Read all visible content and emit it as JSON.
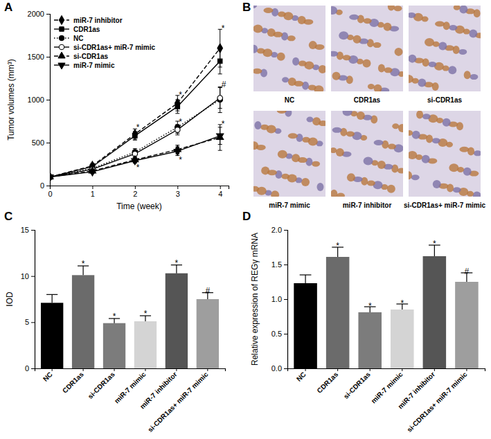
{
  "chart_data": [
    {
      "panel": "A",
      "type": "line",
      "x": [
        0,
        1,
        2,
        3,
        4
      ],
      "xlim": [
        0,
        4.2
      ],
      "xticks": [
        0,
        1,
        2,
        3,
        4
      ],
      "ylim": [
        0,
        2000
      ],
      "yticks": [
        0,
        500,
        1000,
        1500,
        2000
      ],
      "x_label": "Time (week)",
      "y_label": "Tumor volumes (mm³)",
      "legend": "upper left",
      "series": [
        {
          "name": "miR-7 inhibitor",
          "color": "#000000",
          "marker": "diamond",
          "line_style": "dashed",
          "values": [
            100,
            230,
            600,
            960,
            1600
          ],
          "errors": [
            10,
            30,
            60,
            90,
            220
          ]
        },
        {
          "name": "CDR1as",
          "color": "#000000",
          "marker": "square",
          "line_style": "solid",
          "values": [
            100,
            220,
            580,
            920,
            1450
          ],
          "errors": [
            10,
            25,
            50,
            80,
            150
          ]
        },
        {
          "name": "NC",
          "color": "#000000",
          "marker": "circle",
          "line_style": "dotted",
          "values": [
            100,
            200,
            390,
            680,
            1000
          ],
          "errors": [
            10,
            20,
            40,
            70,
            150
          ]
        },
        {
          "name": "si-CDR1as+ miR-7 mimic",
          "color": "#000000",
          "marker": "circle-open",
          "line_style": "solid",
          "values": [
            100,
            190,
            370,
            650,
            1020
          ],
          "errors": [
            10,
            20,
            40,
            60,
            120
          ]
        },
        {
          "name": "si-CDR1as",
          "color": "#000000",
          "marker": "triangle",
          "line_style": "dashed",
          "values": [
            100,
            170,
            300,
            420,
            560
          ],
          "errors": [
            10,
            20,
            30,
            50,
            150
          ]
        },
        {
          "name": "miR-7 mimic",
          "color": "#000000",
          "marker": "triangle-down",
          "line_style": "solid",
          "values": [
            100,
            160,
            290,
            400,
            580
          ],
          "errors": [
            10,
            20,
            30,
            50,
            100
          ]
        }
      ],
      "annotations": [
        {
          "x": 2,
          "y": 680,
          "text": "*"
        },
        {
          "x": 2,
          "y": 210,
          "text": "*"
        },
        {
          "x": 3,
          "y": 1060,
          "text": "*"
        },
        {
          "x": 3,
          "y": 740,
          "text": "*"
        },
        {
          "x": 3,
          "y": 300,
          "text": "*"
        },
        {
          "x": 4,
          "y": 1830,
          "text": "*"
        },
        {
          "x": 4,
          "y": 1180,
          "text": "#"
        },
        {
          "x": 4,
          "y": 720,
          "text": "*"
        }
      ]
    },
    {
      "panel": "B",
      "type": "image",
      "labels": [
        "NC",
        "CDR1as",
        "si-CDR1as",
        "miR-7 mimic",
        "miR-7 inhibitor",
        "si-CDR1as+ miR-7 mimic"
      ]
    },
    {
      "panel": "C",
      "type": "bar",
      "y_label": "IOD",
      "categories": [
        "NC",
        "CDR1as",
        "si-CDR1as",
        "miR-7 mimic",
        "miR-7 inhibitor",
        "si-CDR1as+ miR-7 mimic"
      ],
      "values": [
        7.1,
        10.1,
        4.9,
        5.1,
        10.3,
        7.5
      ],
      "errors": [
        0.9,
        1.0,
        0.5,
        0.6,
        0.9,
        0.7
      ],
      "colors": [
        "#000000",
        "#6b6b6b",
        "#7c7c7c",
        "#d4d4d4",
        "#555555",
        "#9e9e9e"
      ],
      "ylim": [
        0,
        15
      ],
      "yticks": [
        0,
        5,
        10,
        15
      ],
      "annotations": [
        {
          "x": "CDR1as",
          "y": 11.3,
          "text": "*"
        },
        {
          "x": "si-CDR1as",
          "y": 5.6,
          "text": "*"
        },
        {
          "x": "miR-7 mimic",
          "y": 5.9,
          "text": "*"
        },
        {
          "x": "miR-7 inhibitor",
          "y": 11.4,
          "text": "*"
        },
        {
          "x": "si-CDR1as+ miR-7 mimic",
          "y": 8.4,
          "text": "#"
        }
      ]
    },
    {
      "panel": "D",
      "type": "bar",
      "y_label": "Relative expression of REGγ mRNA",
      "categories": [
        "NC",
        "CDR1as",
        "si-CDR1as",
        "miR-7 mimic",
        "miR-7 inhibitor",
        "si-CDR1as+ miR-7 mimic"
      ],
      "values": [
        1.23,
        1.61,
        0.81,
        0.85,
        1.62,
        1.25
      ],
      "errors": [
        0.12,
        0.14,
        0.08,
        0.08,
        0.16,
        0.13
      ],
      "colors": [
        "#000000",
        "#6b6b6b",
        "#7c7c7c",
        "#d4d4d4",
        "#555555",
        "#9e9e9e"
      ],
      "ylim": [
        0,
        2
      ],
      "yticks": [
        {
          "value": 0,
          "label": "0.0"
        },
        0.5,
        {
          "value": 1,
          "label": "1.0"
        },
        1.5,
        {
          "value": 2,
          "label": "2.0"
        }
      ],
      "annotations": [
        {
          "x": "CDR1as",
          "y": 1.77,
          "text": "*"
        },
        {
          "x": "si-CDR1as",
          "y": 0.9,
          "text": "*"
        },
        {
          "x": "miR-7 mimic",
          "y": 0.94,
          "text": "*"
        },
        {
          "x": "miR-7 inhibitor",
          "y": 1.8,
          "text": "*"
        },
        {
          "x": "si-CDR1as+ miR-7 mimic",
          "y": 1.4,
          "text": "#"
        }
      ]
    }
  ]
}
